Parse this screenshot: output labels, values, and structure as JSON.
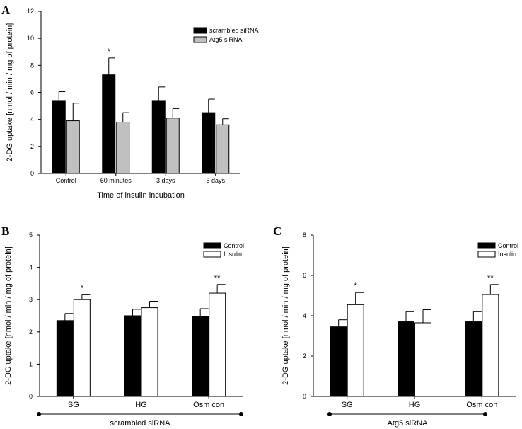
{
  "panels": {
    "A": {
      "letter": "A"
    },
    "B": {
      "letter": "B",
      "group_label": "scrambled siRNA"
    },
    "C": {
      "letter": "C",
      "group_label": "Atg5 siRNA"
    }
  },
  "colors": {
    "black": "#000000",
    "grey": "#c0c0c0",
    "white": "#ffffff"
  },
  "chart_data": [
    {
      "id": "A",
      "type": "bar",
      "categories": [
        "Control",
        "60 minutes",
        "3 days",
        "5 days"
      ],
      "series": [
        {
          "name": "scrambled siRNA",
          "color": "#000000",
          "values": [
            5.4,
            7.3,
            5.4,
            4.5
          ],
          "errors": [
            0.65,
            1.25,
            1.0,
            1.0
          ]
        },
        {
          "name": "Atg5 siRNA",
          "color": "#c0c0c0",
          "values": [
            3.9,
            3.8,
            4.1,
            3.6
          ],
          "errors": [
            1.3,
            0.7,
            0.7,
            0.45
          ]
        }
      ],
      "annotations": [
        {
          "series": 0,
          "category": 1,
          "text": "*"
        }
      ],
      "xlabel": "Time of insulin incubation",
      "ylabel": "2-DG uptake [nmol / min / mg of protein]",
      "ylim": [
        0,
        12
      ],
      "yticks": [
        "0",
        "2",
        "4",
        "6",
        "8",
        "10",
        "12"
      ],
      "legend": "top-right",
      "grid": false
    },
    {
      "id": "B",
      "type": "bar",
      "categories": [
        "SG",
        "HG",
        "Osm con"
      ],
      "series": [
        {
          "name": "Control",
          "color": "#000000",
          "values": [
            2.35,
            2.5,
            2.48
          ],
          "errors": [
            0.22,
            0.2,
            0.24
          ]
        },
        {
          "name": "Insulin",
          "color": "#ffffff",
          "values": [
            3.0,
            2.75,
            3.2
          ],
          "errors": [
            0.15,
            0.2,
            0.27
          ]
        }
      ],
      "annotations": [
        {
          "series": 1,
          "category": 0,
          "text": "*"
        },
        {
          "series": 1,
          "category": 2,
          "text": "**"
        }
      ],
      "xlabel": "",
      "ylabel": "2-DG uptake [nmol / min / mg of protein]",
      "ylim": [
        0,
        5
      ],
      "yticks": [
        "0",
        "1",
        "2",
        "3",
        "4",
        "5"
      ],
      "legend": "top-right",
      "grid": false
    },
    {
      "id": "C",
      "type": "bar",
      "categories": [
        "SG",
        "HG",
        "Osm con"
      ],
      "series": [
        {
          "name": "Control",
          "color": "#000000",
          "values": [
            3.45,
            3.7,
            3.7
          ],
          "errors": [
            0.35,
            0.5,
            0.5
          ]
        },
        {
          "name": "Insulin",
          "color": "#ffffff",
          "values": [
            4.55,
            3.65,
            5.05
          ],
          "errors": [
            0.6,
            0.65,
            0.5
          ]
        }
      ],
      "annotations": [
        {
          "series": 1,
          "category": 0,
          "text": "*"
        },
        {
          "series": 1,
          "category": 2,
          "text": "**"
        }
      ],
      "xlabel": "",
      "ylabel": "2-DG uptake [nmol / min / mg of protein]",
      "ylim": [
        0,
        8
      ],
      "yticks": [
        "0",
        "2",
        "4",
        "6",
        "8"
      ],
      "legend": "top-right",
      "grid": false
    }
  ]
}
